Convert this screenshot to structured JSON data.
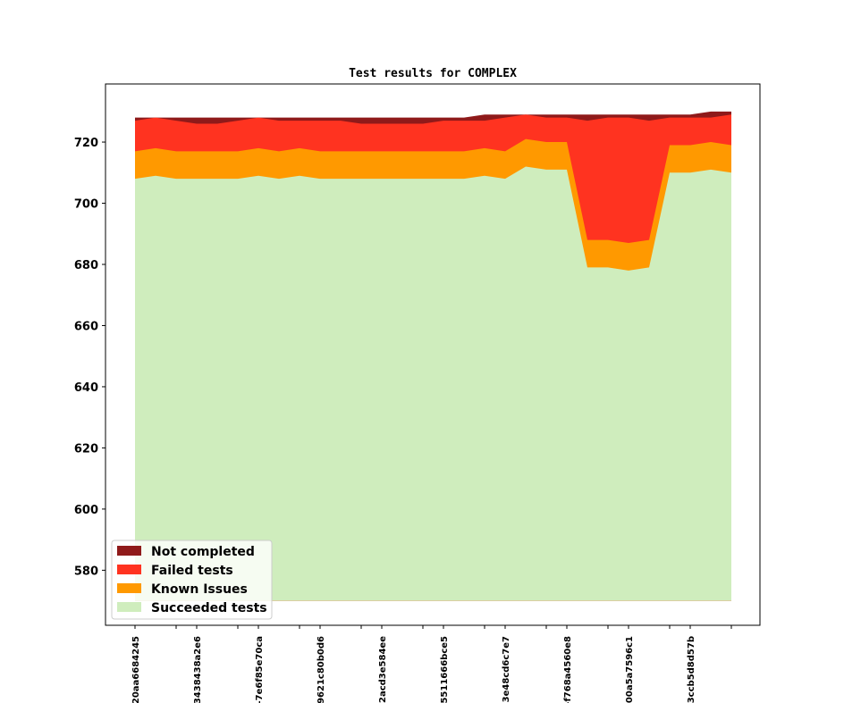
{
  "chart_data": {
    "type": "area",
    "stacked": true,
    "title": "Test results for COMPLEX",
    "xlabel": "",
    "ylabel": "",
    "ylim": [
      562,
      739
    ],
    "yticks": [
      580,
      600,
      620,
      640,
      660,
      680,
      700,
      720
    ],
    "x_tick_labels": [
      "20aa6684245",
      "",
      "3438438a2e6",
      "",
      "-7e6f85e70ca",
      "",
      "9621c80b0d6",
      "",
      "2acd3e584ee",
      "",
      "5511666bce5",
      "",
      "3e48cd6c7e7",
      "",
      "-f768a4560e8",
      "",
      "00a5a7596c1",
      "",
      "3ccb5d8d57b",
      ""
    ],
    "x_tick_positions": [
      0,
      2,
      3,
      5,
      6,
      8,
      9,
      11,
      12,
      14,
      15,
      17,
      18,
      20,
      21,
      23,
      24,
      26,
      27,
      29
    ],
    "baseline": 570,
    "legend_position": "lower-left",
    "series": [
      {
        "name": "Succeeded tests",
        "color": "#cfedbd",
        "totals": [
          708,
          709,
          708,
          708,
          708,
          708,
          709,
          708,
          709,
          708,
          708,
          708,
          708,
          708,
          708,
          708,
          708,
          709,
          708,
          712,
          711,
          711,
          679,
          679,
          678,
          679,
          710,
          710,
          711,
          710
        ]
      },
      {
        "name": "Known Issues",
        "color": "#ff9900",
        "totals": [
          717,
          718,
          717,
          717,
          717,
          717,
          718,
          717,
          718,
          717,
          717,
          717,
          717,
          717,
          717,
          717,
          717,
          718,
          717,
          721,
          720,
          720,
          688,
          688,
          687,
          688,
          719,
          719,
          720,
          719
        ]
      },
      {
        "name": "Failed tests",
        "color": "#ff3320",
        "totals": [
          727,
          728,
          727,
          726,
          726,
          727,
          728,
          727,
          727,
          727,
          727,
          726,
          726,
          726,
          726,
          727,
          727,
          727,
          728,
          729,
          728,
          728,
          727,
          728,
          728,
          727,
          728,
          728,
          728,
          729
        ]
      },
      {
        "name": "Not completed",
        "color": "#8f1a1a",
        "totals": [
          728,
          728,
          728,
          728,
          728,
          728,
          728,
          728,
          728,
          728,
          728,
          728,
          728,
          728,
          728,
          728,
          728,
          729,
          729,
          729,
          729,
          729,
          729,
          729,
          729,
          729,
          729,
          729,
          730,
          730
        ]
      }
    ],
    "legend_order": [
      "Not completed",
      "Failed tests",
      "Known Issues",
      "Succeeded tests"
    ]
  }
}
